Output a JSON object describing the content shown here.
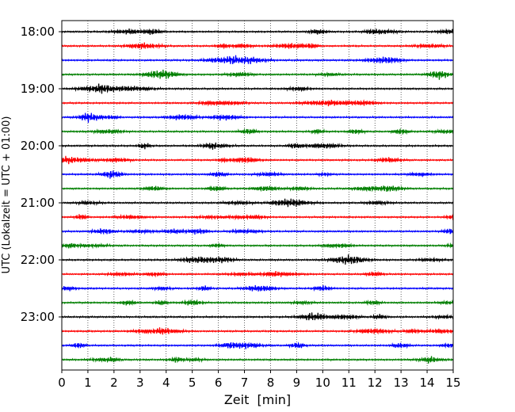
{
  "chart_data": {
    "type": "line",
    "title": "",
    "xlabel": "Zeit  [min]",
    "ylabel": "UTC (Lokalzeit = UTC + 01:00)",
    "xlim": [
      0,
      15
    ],
    "x_ticks": [
      "0",
      "1",
      "2",
      "3",
      "4",
      "5",
      "6",
      "7",
      "8",
      "9",
      "10",
      "11",
      "12",
      "13",
      "14",
      "15"
    ],
    "y_ticks": [
      "18:00",
      "19:00",
      "20:00",
      "21:00",
      "22:00",
      "23:00"
    ],
    "grid": "vertical dotted at each minute",
    "line_colors": [
      "#000000",
      "#ff0000",
      "#0000ff",
      "#007f00"
    ],
    "series": [
      {
        "label": "18:00",
        "values": []
      },
      {
        "label": "18:15",
        "values": []
      },
      {
        "label": "18:30",
        "values": []
      },
      {
        "label": "18:45",
        "values": []
      },
      {
        "label": "19:00",
        "values": []
      },
      {
        "label": "19:15",
        "values": []
      },
      {
        "label": "19:30",
        "values": []
      },
      {
        "label": "19:45",
        "values": []
      },
      {
        "label": "20:00",
        "values": []
      },
      {
        "label": "20:15",
        "values": []
      },
      {
        "label": "20:30",
        "values": []
      },
      {
        "label": "20:45",
        "values": []
      },
      {
        "label": "21:00",
        "values": []
      },
      {
        "label": "21:15",
        "values": []
      },
      {
        "label": "21:30",
        "values": []
      },
      {
        "label": "21:45",
        "values": []
      },
      {
        "label": "22:00",
        "values": []
      },
      {
        "label": "22:15",
        "values": []
      },
      {
        "label": "22:30",
        "values": []
      },
      {
        "label": "22:45",
        "values": []
      },
      {
        "label": "23:00",
        "values": []
      },
      {
        "label": "23:15",
        "values": []
      },
      {
        "label": "23:30",
        "values": []
      },
      {
        "label": "23:45",
        "values": []
      }
    ]
  }
}
